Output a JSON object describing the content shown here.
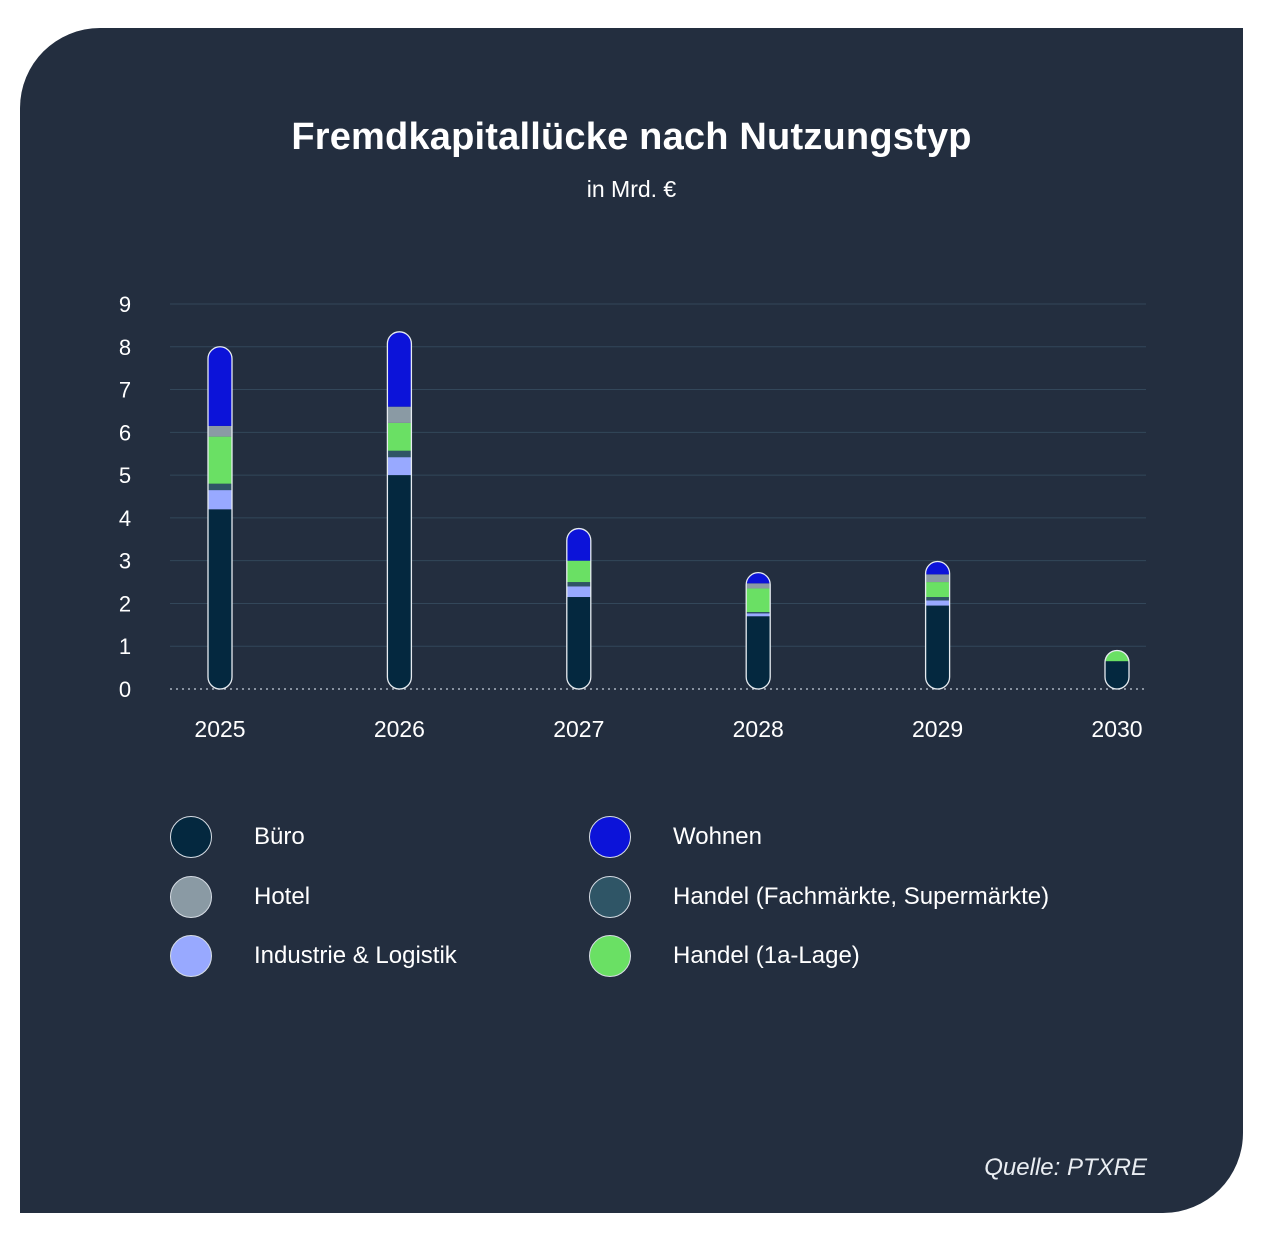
{
  "chart_data": {
    "type": "bar",
    "stacked": true,
    "title": "Fremdkapitallücke nach Nutzungstyp",
    "subtitle": "in Mrd. €",
    "categories": [
      "2025",
      "2026",
      "2027",
      "2028",
      "2029",
      "2030"
    ],
    "yticks": [
      "0",
      "1",
      "2",
      "3",
      "4",
      "5",
      "6",
      "7",
      "8",
      "9"
    ],
    "ylim": [
      0,
      9
    ],
    "grid": true,
    "legend_position": "bottom",
    "series": [
      {
        "name": "Büro",
        "color": "#04283f",
        "values": [
          4.2,
          5.0,
          2.15,
          1.7,
          1.95,
          0.65
        ]
      },
      {
        "name": "Industrie & Logistik",
        "color": "#98a9ff",
        "values": [
          0.45,
          0.42,
          0.25,
          0.07,
          0.12,
          0.0
        ]
      },
      {
        "name": "Handel (Fachmärkte, Supermärkte)",
        "color": "#2f5566",
        "values": [
          0.15,
          0.15,
          0.1,
          0.03,
          0.08,
          0.0
        ]
      },
      {
        "name": "Handel (1a-Lage)",
        "color": "#6ae064",
        "values": [
          1.1,
          0.65,
          0.5,
          0.55,
          0.35,
          0.25
        ]
      },
      {
        "name": "Hotel",
        "color": "#8a9aa4",
        "values": [
          0.25,
          0.38,
          0.0,
          0.12,
          0.18,
          0.0
        ]
      },
      {
        "name": "Wohnen",
        "color": "#0c13d9",
        "values": [
          1.85,
          1.75,
          0.75,
          0.25,
          0.3,
          0.0
        ]
      }
    ],
    "legend_order": [
      "Büro",
      "Hotel",
      "Industrie & Logistik",
      "Wohnen",
      "Handel (Fachmärkte, Supermärkte)",
      "Handel (1a-Lage)"
    ]
  },
  "source": "Quelle: PTXRE"
}
